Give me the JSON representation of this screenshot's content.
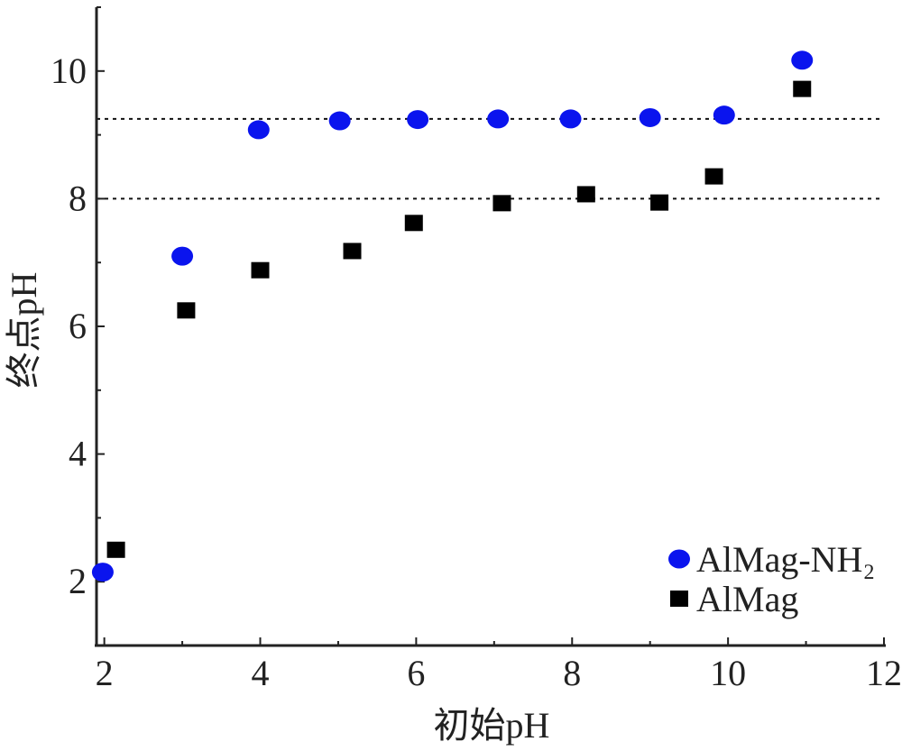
{
  "chart_data": {
    "type": "scatter",
    "xlabel": "初始pH",
    "ylabel": "终点pH",
    "xlim": [
      1.9,
      12
    ],
    "ylim": [
      1,
      11
    ],
    "x_ticks": [
      "2",
      "4",
      "6",
      "8",
      "10",
      "12"
    ],
    "y_ticks": [
      "2",
      "4",
      "6",
      "8",
      "10"
    ],
    "legend_position": "bottom-right",
    "reference_lines": [
      9.25,
      8.0
    ],
    "series": [
      {
        "name": "AlMag-NH₂",
        "marker": "circle",
        "color": "#0a14ee",
        "points": [
          {
            "x": 1.98,
            "y": 2.15
          },
          {
            "x": 3.0,
            "y": 7.1
          },
          {
            "x": 3.98,
            "y": 9.08
          },
          {
            "x": 5.02,
            "y": 9.22
          },
          {
            "x": 6.02,
            "y": 9.24
          },
          {
            "x": 7.05,
            "y": 9.25
          },
          {
            "x": 7.98,
            "y": 9.25
          },
          {
            "x": 9.0,
            "y": 9.27
          },
          {
            "x": 9.95,
            "y": 9.31
          },
          {
            "x": 10.95,
            "y": 10.17
          }
        ]
      },
      {
        "name": "AlMag",
        "marker": "square",
        "color": "#000000",
        "points": [
          {
            "x": 2.15,
            "y": 2.5
          },
          {
            "x": 3.05,
            "y": 6.25
          },
          {
            "x": 4.0,
            "y": 6.88
          },
          {
            "x": 5.18,
            "y": 7.18
          },
          {
            "x": 5.97,
            "y": 7.62
          },
          {
            "x": 7.1,
            "y": 7.93
          },
          {
            "x": 8.18,
            "y": 8.07
          },
          {
            "x": 9.12,
            "y": 7.94
          },
          {
            "x": 9.82,
            "y": 8.35
          },
          {
            "x": 10.95,
            "y": 9.72
          }
        ]
      }
    ]
  }
}
